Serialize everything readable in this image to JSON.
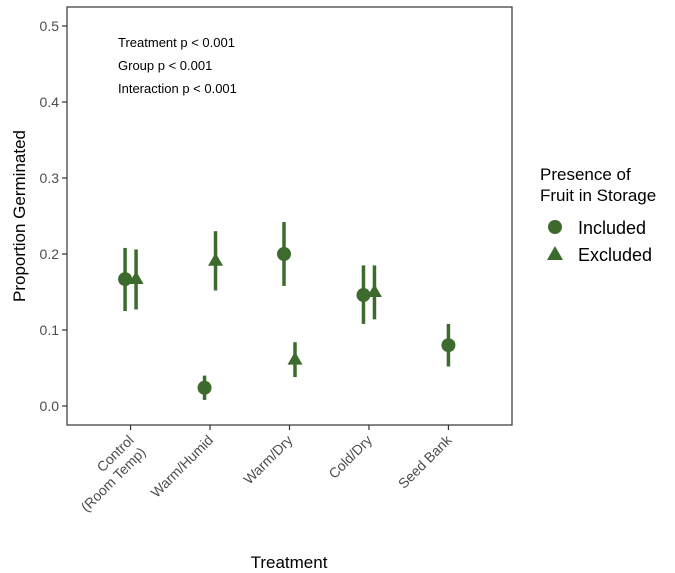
{
  "chart_data": {
    "type": "scatter",
    "xlabel": "Treatment",
    "ylabel": "Proportion Germinated",
    "ylim": [
      -0.025,
      0.525
    ],
    "yticks": [
      "0.0",
      "0.1",
      "0.2",
      "0.3",
      "0.4",
      "0.5"
    ],
    "categories": [
      "Control\n(Room Temp)",
      "Warm/Humid",
      "Warm/Dry",
      "Cold/Dry",
      "Seed Bank"
    ],
    "annotations": [
      "Treatment p < 0.001",
      "Group p < 0.001",
      "Interaction p < 0.001"
    ],
    "legend": {
      "title": "Presence of\nFruit in Storage",
      "placement": "right",
      "entries": [
        {
          "name": "Included",
          "shape": "circle"
        },
        {
          "name": "Excluded",
          "shape": "triangle"
        }
      ]
    },
    "color": "#3d6b2e",
    "grid": false,
    "series": [
      {
        "name": "Included",
        "shape": "circle",
        "points": [
          {
            "category": "Control\n(Room Temp)",
            "y": 0.167,
            "lower": 0.125,
            "upper": 0.208
          },
          {
            "category": "Warm/Humid",
            "y": 0.024,
            "lower": 0.008,
            "upper": 0.04
          },
          {
            "category": "Warm/Dry",
            "y": 0.2,
            "lower": 0.158,
            "upper": 0.242
          },
          {
            "category": "Cold/Dry",
            "y": 0.146,
            "lower": 0.108,
            "upper": 0.185
          },
          {
            "category": "Seed Bank",
            "y": 0.08,
            "lower": 0.052,
            "upper": 0.108
          }
        ]
      },
      {
        "name": "Excluded",
        "shape": "triangle",
        "points": [
          {
            "category": "Control\n(Room Temp)",
            "y": 0.167,
            "lower": 0.127,
            "upper": 0.206
          },
          {
            "category": "Warm/Humid",
            "y": 0.191,
            "lower": 0.152,
            "upper": 0.23
          },
          {
            "category": "Warm/Dry",
            "y": 0.061,
            "lower": 0.038,
            "upper": 0.084
          },
          {
            "category": "Cold/Dry",
            "y": 0.15,
            "lower": 0.114,
            "upper": 0.185
          }
        ]
      }
    ]
  }
}
